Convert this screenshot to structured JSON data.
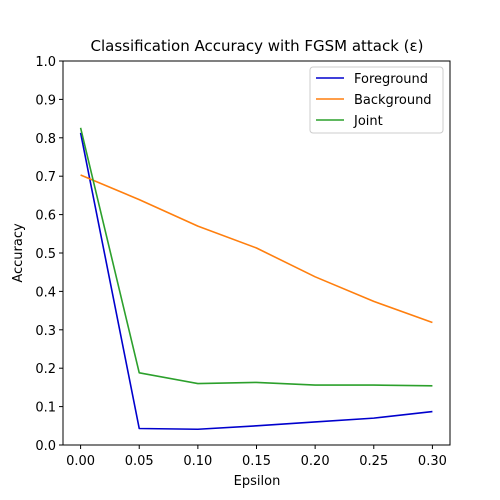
{
  "chart_data": {
    "type": "line",
    "title": "Classification Accuracy with FGSM attack (ε)",
    "xlabel": "Epsilon",
    "ylabel": "Accuracy",
    "x": [
      0.0,
      0.05,
      0.1,
      0.15,
      0.2,
      0.25,
      0.3
    ],
    "xlim": [
      -0.015,
      0.315
    ],
    "ylim": [
      0.0,
      1.0
    ],
    "x_ticks": [
      "0.00",
      "0.05",
      "0.10",
      "0.15",
      "0.20",
      "0.25",
      "0.30"
    ],
    "x_tick_values": [
      0.0,
      0.05,
      0.1,
      0.15,
      0.2,
      0.25,
      0.3
    ],
    "y_ticks": [
      "0.0",
      "0.1",
      "0.2",
      "0.3",
      "0.4",
      "0.5",
      "0.6",
      "0.7",
      "0.8",
      "0.9",
      "1.0"
    ],
    "y_tick_values": [
      0.0,
      0.1,
      0.2,
      0.3,
      0.4,
      0.5,
      0.6,
      0.7,
      0.8,
      0.9,
      1.0
    ],
    "grid": false,
    "legend_position": "top-right",
    "series": [
      {
        "name": "Foreground",
        "color": "#0000cd",
        "values": [
          0.813,
          0.043,
          0.041,
          0.05,
          0.06,
          0.07,
          0.087
        ]
      },
      {
        "name": "Background",
        "color": "#ff7f0e",
        "values": [
          0.703,
          0.639,
          0.57,
          0.513,
          0.438,
          0.374,
          0.319
        ]
      },
      {
        "name": "Joint",
        "color": "#2ca02c",
        "values": [
          0.826,
          0.188,
          0.16,
          0.163,
          0.156,
          0.156,
          0.154
        ]
      }
    ]
  }
}
